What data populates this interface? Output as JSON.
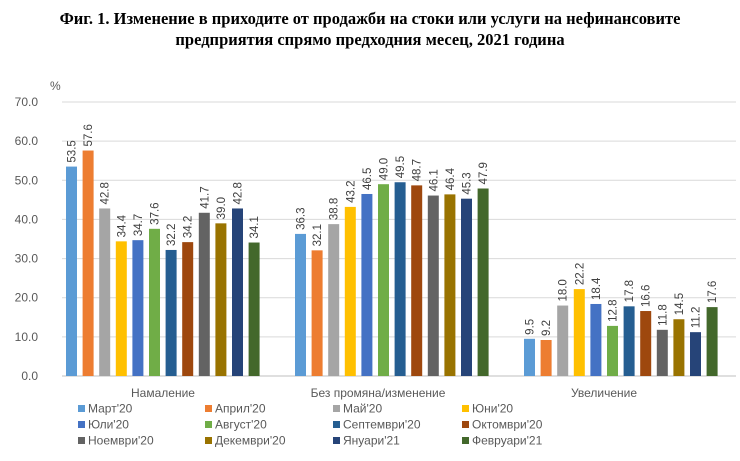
{
  "chart_data": {
    "type": "bar",
    "title_line1": "Фиг. 1. Изменение в приходите от продажби на стоки или услуги на нефинансовите",
    "title_line2": "предприятия спрямо предходния месец, 2021 година",
    "ylabel": "%",
    "ylim": [
      0,
      70
    ],
    "yticks": [
      "0.0",
      "10.0",
      "20.0",
      "30.0",
      "40.0",
      "50.0",
      "60.0",
      "70.0"
    ],
    "grid": true,
    "legend_position": "bottom",
    "categories": [
      "Намаление",
      "Без промяна/изменение",
      "Увеличение"
    ],
    "series": [
      {
        "name": "Март'20",
        "color": "#5B9BD5",
        "values": [
          53.5,
          36.3,
          9.5
        ]
      },
      {
        "name": "Април'20",
        "color": "#ED7D31",
        "values": [
          57.6,
          32.1,
          9.2
        ]
      },
      {
        "name": "Май'20",
        "color": "#A5A5A5",
        "values": [
          42.8,
          38.8,
          18.0
        ]
      },
      {
        "name": "Юни'20",
        "color": "#FFC000",
        "values": [
          34.4,
          43.2,
          22.2
        ]
      },
      {
        "name": "Юли'20",
        "color": "#4472C4",
        "values": [
          34.7,
          46.5,
          18.4
        ]
      },
      {
        "name": "Август'20",
        "color": "#70AD47",
        "values": [
          37.6,
          49.0,
          12.8
        ]
      },
      {
        "name": "Септември'20",
        "color": "#255E91",
        "values": [
          32.2,
          49.5,
          17.8
        ]
      },
      {
        "name": "Октомври'20",
        "color": "#9E480E",
        "values": [
          34.2,
          48.7,
          16.6
        ]
      },
      {
        "name": "Ноември'20",
        "color": "#636363",
        "values": [
          41.7,
          46.1,
          11.8
        ]
      },
      {
        "name": "Декември'20",
        "color": "#997300",
        "values": [
          39.0,
          46.4,
          14.5
        ]
      },
      {
        "name": "Януари'21",
        "color": "#264478",
        "values": [
          42.8,
          45.3,
          11.2
        ]
      },
      {
        "name": "Февруари'21",
        "color": "#43682B",
        "values": [
          34.1,
          47.9,
          17.6
        ]
      }
    ]
  }
}
